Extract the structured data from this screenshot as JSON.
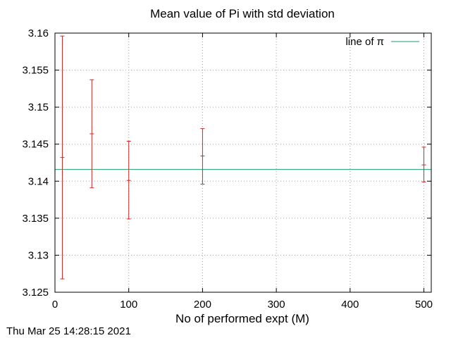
{
  "chart_data": {
    "type": "scatter",
    "title": "Mean value of Pi with std deviation",
    "xlabel": "No of performed expt (M)",
    "ylabel": "",
    "xlim": [
      0,
      510
    ],
    "ylim": [
      3.125,
      3.16
    ],
    "x_ticks": [
      0,
      100,
      200,
      300,
      400,
      500
    ],
    "y_ticks": [
      3.125,
      3.13,
      3.135,
      3.14,
      3.145,
      3.15,
      3.155,
      3.16
    ],
    "y_tick_labels": [
      "3.125",
      "3.13",
      "3.135",
      "3.14",
      "3.145",
      "3.15",
      "3.155",
      "3.16"
    ],
    "grid": true,
    "series": [
      {
        "type": "errorbars",
        "color": "#d02828",
        "points": [
          {
            "x": 10,
            "y": 3.1432,
            "ylow": 3.1268,
            "yhigh": 3.1596
          },
          {
            "x": 50,
            "y": 3.1464,
            "ylow": 3.1391,
            "yhigh": 3.1537
          },
          {
            "x": 100,
            "y": 3.1401,
            "ylow": 3.1349,
            "yhigh": 3.1454
          },
          {
            "x": 200,
            "y": 3.1434,
            "ylow": 3.1396,
            "yhigh": 3.1471
          },
          {
            "x": 500,
            "y": 3.1422,
            "ylow": 3.1399,
            "yhigh": 3.1446
          }
        ]
      },
      {
        "name": "line of π",
        "type": "hline",
        "color": "#1b9e6e",
        "y": 3.14159
      }
    ],
    "legend": {
      "position": "top-right",
      "entries": [
        "line of π"
      ]
    }
  },
  "footer": {
    "timestamp": "Thu Mar 25 14:28:15 2021"
  }
}
